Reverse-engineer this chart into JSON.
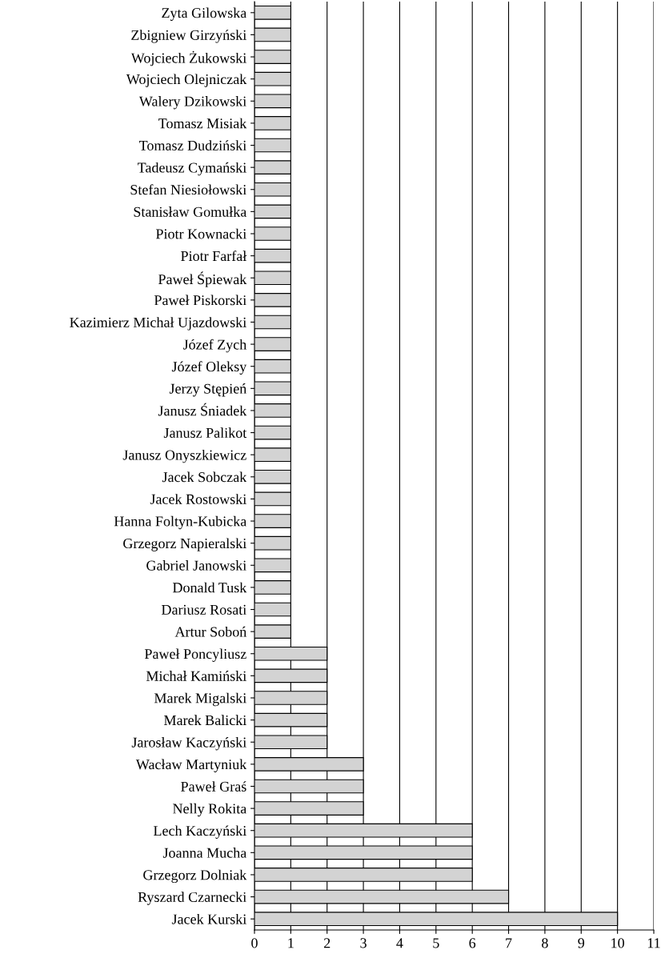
{
  "chart_data": {
    "type": "bar",
    "orientation": "horizontal",
    "categories": [
      "Zyta Gilowska",
      "Zbigniew Girzyński",
      "Wojciech Żukowski",
      "Wojciech Olejniczak",
      "Walery Dzikowski",
      "Tomasz Misiak",
      "Tomasz Dudziński",
      "Tadeusz Cymański",
      "Stefan Niesiołowski",
      "Stanisław Gomułka",
      "Piotr Kownacki",
      "Piotr Farfał",
      "Paweł Śpiewak",
      "Paweł Piskorski",
      "Kazimierz Michał Ujazdowski",
      "Józef Zych",
      "Józef Oleksy",
      "Jerzy Stępień",
      "Janusz Śniadek",
      "Janusz Palikot",
      "Janusz Onyszkiewicz",
      "Jacek Sobczak",
      "Jacek Rostowski",
      "Hanna Foltyn-Kubicka",
      "Grzegorz Napieralski",
      "Gabriel Janowski",
      "Donald Tusk",
      "Dariusz Rosati",
      "Artur Soboń",
      "Paweł Poncyliusz",
      "Michał Kamiński",
      "Marek Migalski",
      "Marek Balicki",
      "Jarosław Kaczyński",
      "Wacław Martyniuk",
      "Paweł Graś",
      "Nelly Rokita",
      "Lech Kaczyński",
      "Joanna Mucha",
      "Grzegorz Dolniak",
      "Ryszard Czarnecki",
      "Jacek Kurski"
    ],
    "values": [
      1,
      1,
      1,
      1,
      1,
      1,
      1,
      1,
      1,
      1,
      1,
      1,
      1,
      1,
      1,
      1,
      1,
      1,
      1,
      1,
      1,
      1,
      1,
      1,
      1,
      1,
      1,
      1,
      1,
      2,
      2,
      2,
      2,
      2,
      3,
      3,
      3,
      6,
      6,
      6,
      7,
      10
    ],
    "color": "#d3d3d3",
    "xlim": [
      0,
      11
    ],
    "xticks": [
      0,
      1,
      2,
      3,
      4,
      5,
      6,
      7,
      8,
      9,
      10,
      11
    ],
    "grid": "x"
  }
}
